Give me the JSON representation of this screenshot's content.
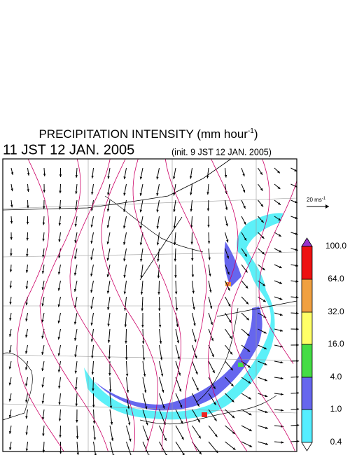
{
  "header": {
    "title": "PRECIPITATION INTENSITY (mm hour",
    "title_sup": "-1",
    "title_end": ")",
    "valid_time": "11 JST 12 JAN. 2005",
    "init_time": "(init. 9 JST 12 JAN. 2005)"
  },
  "vector_legend": {
    "label": "20 ms",
    "sup": "-1"
  },
  "colorbar": {
    "levels": [
      "100.0",
      "64.0",
      "32.0",
      "16.0",
      "4.0",
      "1.0",
      "0.4"
    ]
  }
}
